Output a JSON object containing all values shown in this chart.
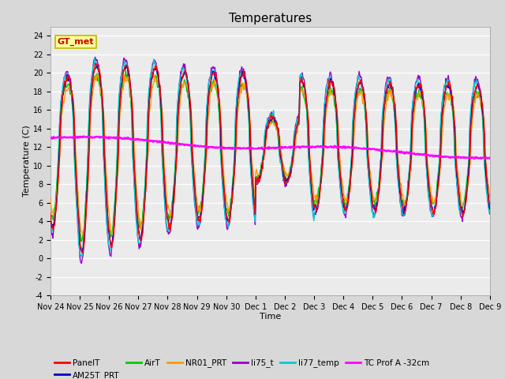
{
  "title": "Temperatures",
  "xlabel": "Time",
  "ylabel": "Temperature (C)",
  "ylim": [
    -4,
    25
  ],
  "x_tick_labels": [
    "Nov 24",
    "Nov 25",
    "Nov 26",
    "Nov 27",
    "Nov 28",
    "Nov 29",
    "Nov 30",
    "Dec 1",
    "Dec 2",
    "Dec 3",
    "Dec 4",
    "Dec 5",
    "Dec 6",
    "Dec 7",
    "Dec 8",
    "Dec 9"
  ],
  "series_colors": {
    "PanelT": "#ff0000",
    "AM25T_PRT": "#0000cc",
    "AirT": "#00cc00",
    "NR01_PRT": "#ff9900",
    "li75_t": "#9900cc",
    "li77_temp": "#00cccc",
    "TC Prof A -32cm": "#ff00ff"
  },
  "background_color": "#d8d8d8",
  "plot_bg_color": "#ebebeb",
  "title_fontsize": 11,
  "axis_fontsize": 8,
  "tick_fontsize": 7,
  "annotation_text": "GT_met"
}
